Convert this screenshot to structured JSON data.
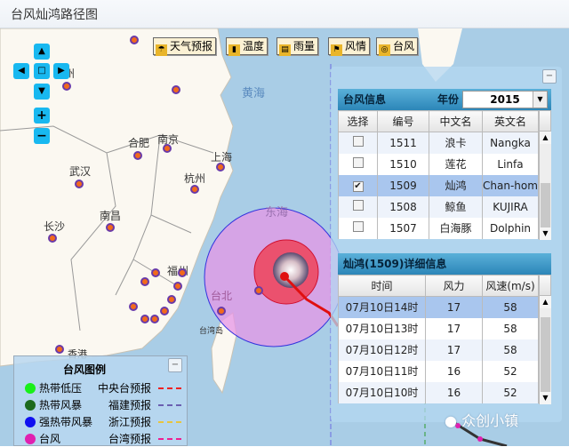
{
  "title": "台风灿鸿路径图",
  "toolbar": [
    {
      "label": "天气预报",
      "icon": "weather-icon"
    },
    {
      "label": "温度",
      "icon": "thermometer-icon"
    },
    {
      "label": "雨量",
      "icon": "rain-icon"
    },
    {
      "label": "风情",
      "icon": "wind-flag-icon"
    },
    {
      "label": "台风",
      "icon": "typhoon-icon"
    }
  ],
  "nav": {
    "up": "▲",
    "down": "▼",
    "left": "◀",
    "right": "▶",
    "center": "□",
    "zoom_in": "+",
    "zoom_out": "−"
  },
  "map": {
    "seas": [
      "黄海",
      "东海"
    ],
    "cities": [
      "合肥",
      "南京",
      "上海",
      "武汉",
      "杭州",
      "南昌",
      "长沙",
      "福州",
      "台北",
      "台湾岛",
      "香港",
      "州"
    ]
  },
  "typhoon_info": {
    "title": "台风信息",
    "year_label": "年份",
    "year": "2015",
    "columns": [
      "选择",
      "编号",
      "中文名",
      "英文名"
    ],
    "rows": [
      {
        "checked": false,
        "id": "1511",
        "cn": "浪卡",
        "en": "Nangka"
      },
      {
        "checked": false,
        "id": "1510",
        "cn": "莲花",
        "en": "Linfa"
      },
      {
        "checked": true,
        "id": "1509",
        "cn": "灿鸿",
        "en": "Chan-hom"
      },
      {
        "checked": false,
        "id": "1508",
        "cn": "鲸鱼",
        "en": "KUJIRA"
      },
      {
        "checked": false,
        "id": "1507",
        "cn": "白海豚",
        "en": "Dolphin"
      }
    ]
  },
  "detail": {
    "title": "灿鸿(1509)详细信息",
    "columns": [
      "时间",
      "风力",
      "风速(m/s)"
    ],
    "rows": [
      {
        "time": "07月10日14时",
        "force": "17",
        "speed": "58"
      },
      {
        "time": "07月10日13时",
        "force": "17",
        "speed": "58"
      },
      {
        "time": "07月10日12时",
        "force": "17",
        "speed": "58"
      },
      {
        "time": "07月10日11时",
        "force": "16",
        "speed": "52"
      },
      {
        "time": "07月10日10时",
        "force": "16",
        "speed": "52"
      }
    ]
  },
  "legend": {
    "title": "台风图例",
    "items": [
      {
        "label": "热带低压",
        "color": "#19f019",
        "fc": "中央台预报",
        "fc_color": "#ee2222"
      },
      {
        "label": "热带风暴",
        "color": "#1d6a1d",
        "fc": "福建预报",
        "fc_color": "#6a5fb0"
      },
      {
        "label": "强热带风暴",
        "color": "#1010f0",
        "fc": "浙江预报",
        "fc_color": "#e8c440"
      },
      {
        "label": "台风",
        "color": "#e020b0",
        "fc": "台湾预报",
        "fc_color": "#ee2090"
      }
    ]
  },
  "watermark": "众创小镇",
  "minimize": "−"
}
